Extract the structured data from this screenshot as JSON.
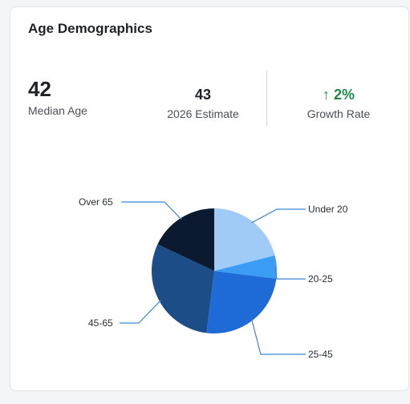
{
  "card": {
    "title": "Age Demographics"
  },
  "stats": {
    "median_age": {
      "value": "42",
      "label": "Median Age"
    },
    "estimate": {
      "value": "43",
      "label": "2026 Estimate"
    },
    "growth": {
      "value": "↑ 2%",
      "label": "Growth Rate",
      "color": "#1e8a46"
    }
  },
  "chart_data": {
    "type": "pie",
    "slices": [
      {
        "label": "Under 20",
        "value": 21,
        "color": "#9fcbf6"
      },
      {
        "label": "20-25",
        "value": 6,
        "color": "#3a9cf2"
      },
      {
        "label": "25-45",
        "value": 25,
        "color": "#1e6ad6"
      },
      {
        "label": "45-65",
        "value": 30,
        "color": "#1d4d86"
      },
      {
        "label": "Over 65",
        "value": 18,
        "color": "#0b1a30"
      }
    ],
    "leader_line_color": "#3f86d4",
    "legend": "none"
  }
}
